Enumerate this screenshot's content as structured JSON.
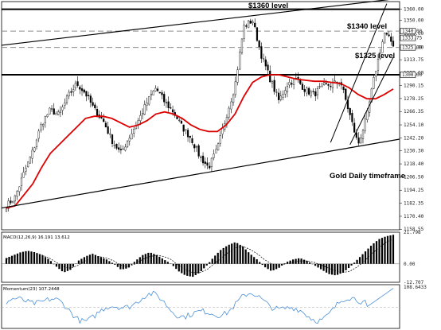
{
  "chart_data": [
    {
      "type": "candlestick",
      "title": "Gold Daily timeframe",
      "ylim": [
        1158.0,
        1367.0
      ],
      "y_ticks": [
        "1360.00",
        "1350.00",
        "1338.00",
        "1325.00",
        "1313.75",
        "1302.00",
        "1290.15",
        "1278.25",
        "1266.35",
        "1254.10",
        "1242.20",
        "1230.30",
        "1218.40",
        "1206.50",
        "1194.25",
        "1182.35",
        "1170.40",
        "1158.55"
      ],
      "price_tags": [
        {
          "label": "1340.00",
          "value": 1340.0
        },
        {
          "label": "1333.75",
          "value": 1333.75
        },
        {
          "label": "1325.00",
          "value": 1325.0
        },
        {
          "label": "1300.00",
          "value": 1300.0
        }
      ],
      "levels": [
        {
          "label": "$1360  level",
          "value": 1360.0,
          "style": "solid"
        },
        {
          "label": "$1340  level",
          "value": 1340.0,
          "style": "dashed"
        },
        {
          "label": "$1325 level",
          "value": 1325.0,
          "style": "dashed"
        },
        {
          "label": "",
          "value": 1300.0,
          "style": "solid"
        }
      ],
      "close_path": [
        1180,
        1188,
        1210,
        1230,
        1255,
        1268,
        1263,
        1280,
        1292,
        1283,
        1268,
        1258,
        1240,
        1228,
        1243,
        1258,
        1275,
        1288,
        1275,
        1266,
        1252,
        1242,
        1225,
        1215,
        1232,
        1262,
        1290,
        1344,
        1350,
        1318,
        1296,
        1276,
        1292,
        1296,
        1286,
        1282,
        1290,
        1291,
        1294,
        1265,
        1236,
        1262,
        1304,
        1338,
        1328
      ],
      "ma_path": [
        1178,
        1180,
        1190,
        1200,
        1215,
        1228,
        1236,
        1244,
        1252,
        1260,
        1262,
        1262,
        1260,
        1256,
        1252,
        1254,
        1258,
        1264,
        1266,
        1264,
        1260,
        1254,
        1250,
        1248,
        1248,
        1254,
        1264,
        1280,
        1293,
        1298,
        1300,
        1300,
        1298,
        1296,
        1295,
        1294,
        1294,
        1293,
        1292,
        1288,
        1282,
        1278,
        1278,
        1282,
        1287
      ]
    },
    {
      "type": "bar",
      "title": "MACD(12,26,9) 16.191 13.612",
      "ylim": [
        -12.707,
        21.798
      ],
      "y_ticks": [
        "21.798",
        "0.00",
        "-12.707"
      ],
      "values": [
        4,
        6,
        8,
        9,
        8,
        6,
        3,
        -2,
        -6,
        -4,
        2,
        5,
        7,
        5,
        3,
        0,
        -4,
        -3,
        2,
        6,
        8,
        6,
        3,
        0,
        -5,
        -8,
        -9,
        -6,
        -1,
        5,
        10,
        13,
        15,
        12,
        7,
        3,
        -2,
        -5,
        -3,
        1,
        3,
        4,
        2,
        -1,
        -4,
        -7,
        -8,
        -6,
        -2,
        3,
        8,
        13,
        17,
        19,
        20
      ],
      "signal": [
        3,
        5,
        6,
        7,
        7,
        6,
        4,
        1,
        -2,
        -3,
        -1,
        2,
        4,
        5,
        4,
        2,
        -1,
        -2,
        0,
        3,
        5,
        6,
        5,
        3,
        -1,
        -4,
        -6,
        -6,
        -4,
        0,
        4,
        8,
        11,
        12,
        10,
        7,
        3,
        0,
        -1,
        0,
        1,
        2,
        2,
        1,
        -1,
        -3,
        -5,
        -6,
        -5,
        -2,
        2,
        7,
        11,
        15,
        17
      ]
    },
    {
      "type": "line",
      "title": "Momentum(23) 107.2448",
      "ylim": [
        92.0,
        108.6
      ]
    }
  ],
  "annotations": {
    "level_1360": "$1360  level",
    "level_1340": "$1340  level",
    "level_1325": "$1325 level",
    "timeframe": "Gold Daily timeframe"
  },
  "colors": {
    "moving_average": "#dd0000",
    "momentum_line": "#4a90d9",
    "trendline": "#000000",
    "dashed_level": "#8a8a8a",
    "panel_border": "#000000"
  }
}
